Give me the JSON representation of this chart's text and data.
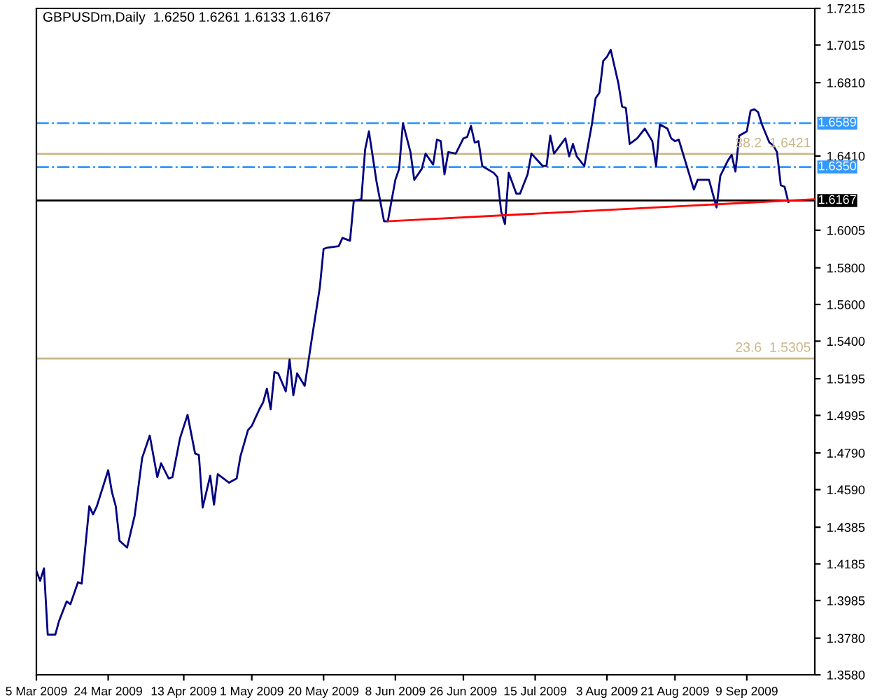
{
  "chart_data": {
    "type": "line",
    "title": "GBPUSDm,Daily  1.6250 1.6261 1.6133 1.6167",
    "series": [
      {
        "color": "#000080",
        "x": [
          "2009-03-05",
          "2009-03-06",
          "2009-03-07",
          "2009-03-08",
          "2009-03-10",
          "2009-03-11",
          "2009-03-13",
          "2009-03-14",
          "2009-03-16",
          "2009-03-17",
          "2009-03-19",
          "2009-03-20",
          "2009-03-21",
          "2009-03-24",
          "2009-03-25",
          "2009-03-26",
          "2009-03-27",
          "2009-03-29",
          "2009-03-31",
          "2009-04-02",
          "2009-04-04",
          "2009-04-06",
          "2009-04-07",
          "2009-04-09",
          "2009-04-10",
          "2009-04-12",
          "2009-04-14",
          "2009-04-16",
          "2009-04-17",
          "2009-04-18",
          "2009-04-20",
          "2009-04-21",
          "2009-04-22",
          "2009-04-25",
          "2009-04-27",
          "2009-04-28",
          "2009-04-30",
          "2009-05-01",
          "2009-05-03",
          "2009-05-04",
          "2009-05-05",
          "2009-05-06",
          "2009-05-07",
          "2009-05-08",
          "2009-05-10",
          "2009-05-11",
          "2009-05-12",
          "2009-05-13",
          "2009-05-15",
          "2009-05-17",
          "2009-05-19",
          "2009-05-20",
          "2009-05-21",
          "2009-05-24",
          "2009-05-25",
          "2009-05-27",
          "2009-05-28",
          "2009-05-30",
          "2009-05-31",
          "2009-06-01",
          "2009-06-03",
          "2009-06-05",
          "2009-06-06",
          "2009-06-08",
          "2009-06-09",
          "2009-06-10",
          "2009-06-12",
          "2009-06-13",
          "2009-06-15",
          "2009-06-16",
          "2009-06-18",
          "2009-06-19",
          "2009-06-20",
          "2009-06-21",
          "2009-06-22",
          "2009-06-24",
          "2009-06-26",
          "2009-06-27",
          "2009-06-28",
          "2009-06-29",
          "2009-06-30",
          "2009-07-01",
          "2009-07-04",
          "2009-07-05",
          "2009-07-06",
          "2009-07-07",
          "2009-07-08",
          "2009-07-10",
          "2009-07-11",
          "2009-07-13",
          "2009-07-14",
          "2009-07-17",
          "2009-07-18",
          "2009-07-19",
          "2009-07-20",
          "2009-07-23",
          "2009-07-24",
          "2009-07-25",
          "2009-07-26",
          "2009-07-28",
          "2009-07-30",
          "2009-07-31",
          "2009-08-01",
          "2009-08-02",
          "2009-08-03",
          "2009-08-04",
          "2009-08-06",
          "2009-08-07",
          "2009-08-08",
          "2009-08-09",
          "2009-08-10",
          "2009-08-11",
          "2009-08-13",
          "2009-08-15",
          "2009-08-16",
          "2009-08-17",
          "2009-08-19",
          "2009-08-20",
          "2009-08-21",
          "2009-08-22",
          "2009-08-26",
          "2009-08-27",
          "2009-08-29",
          "2009-08-30",
          "2009-09-01",
          "2009-09-02",
          "2009-09-04",
          "2009-09-05",
          "2009-09-06",
          "2009-09-07",
          "2009-09-09",
          "2009-09-10",
          "2009-09-11",
          "2009-09-12",
          "2009-09-13",
          "2009-09-15",
          "2009-09-16",
          "2009-09-17",
          "2009-09-18",
          "2009-09-19",
          "2009-09-20"
        ],
        "values": [
          1.4146,
          1.4093,
          1.4161,
          1.3799,
          1.3799,
          1.3874,
          1.398,
          1.3965,
          1.4085,
          1.4078,
          1.45,
          1.4455,
          1.45,
          1.4696,
          1.4576,
          1.45,
          1.4311,
          1.4274,
          1.4447,
          1.4764,
          1.4885,
          1.4658,
          1.4734,
          1.4651,
          1.4658,
          1.487,
          1.4998,
          1.4787,
          1.4779,
          1.4492,
          1.4666,
          1.4508,
          1.4674,
          1.4628,
          1.4651,
          1.4772,
          1.4915,
          1.4938,
          1.5028,
          1.5066,
          1.5141,
          1.5028,
          1.5232,
          1.5224,
          1.5126,
          1.53,
          1.5104,
          1.5224,
          1.5156,
          1.5428,
          1.5692,
          1.5903,
          1.591,
          1.5918,
          1.5963,
          1.5948,
          1.6167,
          1.6174,
          1.6446,
          1.6544,
          1.6272,
          1.6054,
          1.6054,
          1.628,
          1.634,
          1.6589,
          1.6431,
          1.628,
          1.634,
          1.6423,
          1.6363,
          1.6499,
          1.6491,
          1.631,
          1.6431,
          1.6423,
          1.6506,
          1.6514,
          1.6574,
          1.6483,
          1.6491,
          1.6355,
          1.6318,
          1.6295,
          1.6106,
          1.6039,
          1.6318,
          1.6205,
          1.6205,
          1.631,
          1.6423,
          1.6355,
          1.6355,
          1.6521,
          1.6423,
          1.6506,
          1.6408,
          1.6476,
          1.6408,
          1.6355,
          1.6582,
          1.6725,
          1.6755,
          1.6928,
          1.6951,
          1.6989,
          1.6808,
          1.668,
          1.6672,
          1.6476,
          1.6491,
          1.6506,
          1.6559,
          1.6491,
          1.6355,
          1.6582,
          1.6559,
          1.6506,
          1.6491,
          1.6499,
          1.6227,
          1.628,
          1.628,
          1.628,
          1.6129,
          1.6302,
          1.6385,
          1.6416,
          1.6325,
          1.6521,
          1.6544,
          1.6657,
          1.6665,
          1.6649,
          1.6582,
          1.6483,
          1.6468,
          1.6431,
          1.625,
          1.6242,
          1.6159
        ]
      },
      {
        "type": "line",
        "color": "#ff0000",
        "x": [
          "2009-06-06",
          "2009-09-27"
        ],
        "values": [
          1.6054,
          1.6174
        ]
      }
    ],
    "xlim": [
      "2009-03-05",
      "2009-09-27"
    ],
    "xticks": [
      {
        "value": "2009-03-05",
        "label": "5 Mar 2009"
      },
      {
        "value": "2009-03-24",
        "label": "24 Mar 2009"
      },
      {
        "value": "2009-04-13",
        "label": "13 Apr 2009"
      },
      {
        "value": "2009-05-01",
        "label": "1 May 2009"
      },
      {
        "value": "2009-05-20",
        "label": "20 May 2009"
      },
      {
        "value": "2009-06-08",
        "label": "8 Jun 2009"
      },
      {
        "value": "2009-06-26",
        "label": "26 Jun 2009"
      },
      {
        "value": "2009-07-15",
        "label": "15 Jul 2009"
      },
      {
        "value": "2009-08-03",
        "label": "3 Aug 2009"
      },
      {
        "value": "2009-08-21",
        "label": "21 Aug 2009"
      },
      {
        "value": "2009-09-09",
        "label": "9 Sep 2009"
      }
    ],
    "ylim": [
      1.358,
      1.7215
    ],
    "yticks": [
      {
        "value": 1.358,
        "label": "1.3580"
      },
      {
        "value": 1.378,
        "label": "1.3780"
      },
      {
        "value": 1.3985,
        "label": "1.3985"
      },
      {
        "value": 1.4185,
        "label": "1.4185"
      },
      {
        "value": 1.4385,
        "label": "1.4385"
      },
      {
        "value": 1.459,
        "label": "1.4590"
      },
      {
        "value": 1.479,
        "label": "1.4790"
      },
      {
        "value": 1.4995,
        "label": "1.4995"
      },
      {
        "value": 1.5195,
        "label": "1.5195"
      },
      {
        "value": 1.54,
        "label": "1.5400"
      },
      {
        "value": 1.56,
        "label": "1.5600"
      },
      {
        "value": 1.58,
        "label": "1.5800"
      },
      {
        "value": 1.6005,
        "label": "1.6005"
      },
      {
        "value": 1.641,
        "label": "1.6410"
      },
      {
        "value": 1.681,
        "label": "1.6810"
      },
      {
        "value": 1.7015,
        "label": "1.7015"
      },
      {
        "value": 1.7215,
        "label": "1.7215"
      }
    ],
    "ref_lines": [
      {
        "axis": "y",
        "value": 1.6589,
        "label": "1.6589",
        "color": "#3399ff",
        "line_style": "dashdot"
      },
      {
        "axis": "y",
        "value": 1.635,
        "label": "1.6350",
        "color": "#3399ff",
        "line_style": "dashdot"
      },
      {
        "axis": "y",
        "value": 1.6421,
        "label": "38.2  1.6421",
        "color": "#c8b78a",
        "line_style": "solid"
      },
      {
        "axis": "y",
        "value": 1.5305,
        "label": "23.6  1.5305",
        "color": "#c8b78a",
        "line_style": "solid"
      },
      {
        "axis": "y",
        "value": 1.6167,
        "label": "1.6167",
        "color": "#000000",
        "line_style": "solid"
      }
    ],
    "grid": false,
    "legend": false
  }
}
